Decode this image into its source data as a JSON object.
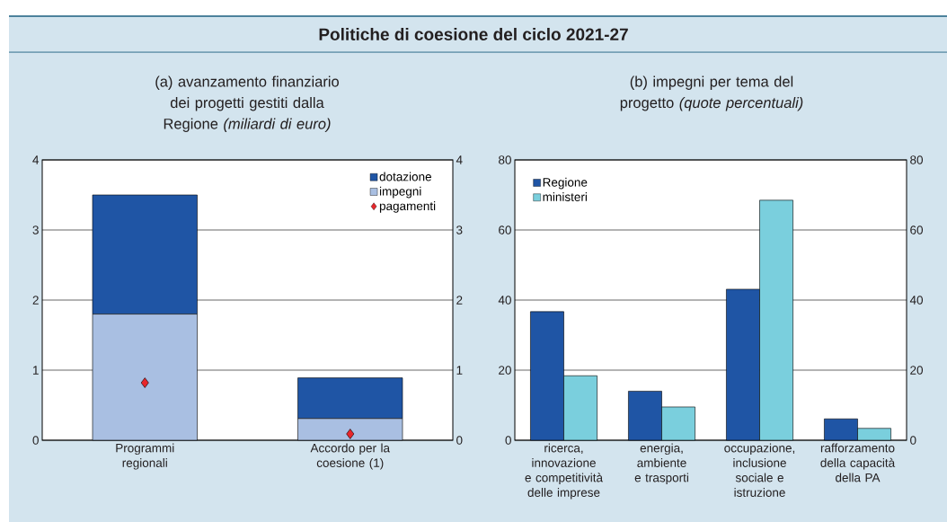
{
  "chart_data": [
    {
      "type": "bar",
      "title": "Politiche di coesione del ciclo 2021-27",
      "subtitle": "(a) avanzamento finanziario dei progetti gestiti dalla Regione *(miliardi di euro)*",
      "categories": [
        "Programmi regionali",
        "Accordo per la coesione (1)"
      ],
      "stacked": true,
      "series": [
        {
          "name": "impegni",
          "color": "#a9bfe2",
          "values": [
            1.8,
            0.31
          ]
        },
        {
          "name": "dotazione",
          "color": "#1f55a5",
          "values": [
            1.7,
            0.58
          ]
        },
        {
          "name": "pagamenti",
          "type": "scatter",
          "marker": "diamond",
          "color": "#e8262b",
          "values": [
            0.82,
            0.09
          ]
        }
      ],
      "ylim": [
        0,
        4
      ],
      "yticks": [
        0,
        1,
        2,
        3,
        4
      ],
      "y2lim": [
        0,
        4
      ],
      "y2ticks": [
        0,
        1,
        2,
        3,
        4
      ],
      "grid": "y",
      "legend": "top right"
    },
    {
      "type": "bar",
      "subtitle": "(b) impegni per tema del progetto *(quote percentuali)*",
      "categories": [
        "ricerca, innovazione e competitività delle imprese",
        "energia, ambiente e trasporti",
        "occupazione, inclusione sociale e istruzione",
        "rafforzamento della capacità della PA"
      ],
      "series": [
        {
          "name": "Regione",
          "color": "#1f55a5",
          "values": [
            36.7,
            14.0,
            43.1,
            6.1
          ]
        },
        {
          "name": "ministeri",
          "color": "#7acfdd",
          "values": [
            18.4,
            9.5,
            68.5,
            3.4
          ]
        }
      ],
      "ylim": [
        0,
        80
      ],
      "yticks": [
        0,
        20,
        40,
        60,
        80
      ],
      "y2lim": [
        0,
        80
      ],
      "y2ticks": [
        0,
        20,
        40,
        60,
        80
      ],
      "grid": "y",
      "legend": "top left"
    }
  ]
}
